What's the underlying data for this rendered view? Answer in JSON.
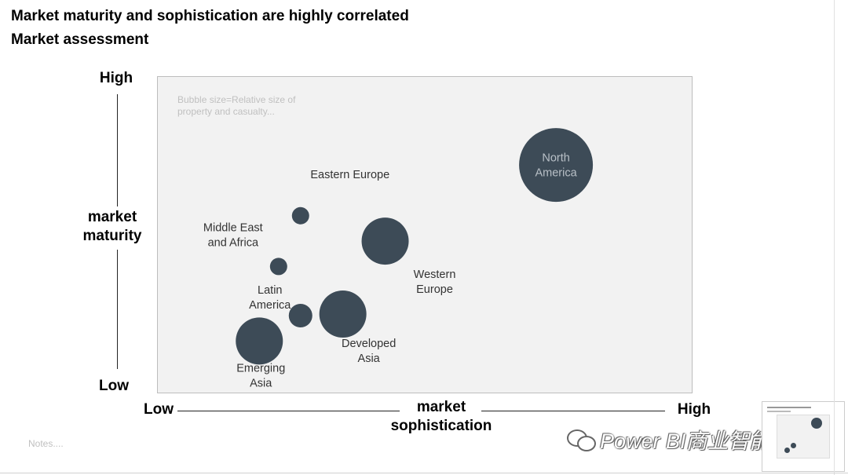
{
  "header": {
    "title": "Market maturity and sophistication are highly correlated",
    "subtitle": "Market assessment"
  },
  "chart_data": {
    "type": "scatter",
    "title": "Market maturity and sophistication are highly correlated",
    "subtitle": "Market assessment",
    "xlabel": "market sophistication",
    "ylabel": "market maturity",
    "x_axis": {
      "low_label": "Low",
      "high_label": "High",
      "label_line1": "market",
      "label_line2": "sophistication"
    },
    "y_axis": {
      "low_label": "Low",
      "high_label": "High",
      "label_line1": "market",
      "label_line2": "maturity"
    },
    "xlim": [
      0,
      100
    ],
    "ylim": [
      0,
      100
    ],
    "bubble_note": "Bubble size=Relative size of property and casualty...",
    "grid": false,
    "legend": "none",
    "bubble_color": "#3d4b57",
    "points": [
      {
        "name": "North America",
        "label_lines": [
          "North",
          "America"
        ],
        "x": 74.5,
        "y": 72,
        "size": 47,
        "label_pos": "inside"
      },
      {
        "name": "Eastern Europe",
        "label_lines": [
          "Eastern Europe"
        ],
        "x": 26.8,
        "y": 56,
        "size": 11,
        "label_pos": "above"
      },
      {
        "name": "Western Europe",
        "label_lines": [
          "Western",
          "Europe"
        ],
        "x": 42.6,
        "y": 48,
        "size": 30,
        "label_pos": "right"
      },
      {
        "name": "Middle East and Africa",
        "label_lines": [
          "Middle East",
          "and Africa"
        ],
        "x": 22.7,
        "y": 40,
        "size": 11,
        "label_pos": "left"
      },
      {
        "name": "Latin America",
        "label_lines": [
          "Latin",
          "America"
        ],
        "x": 26.8,
        "y": 24.5,
        "size": 15,
        "label_pos": "left"
      },
      {
        "name": "Developed Asia",
        "label_lines": [
          "Developed",
          "Asia"
        ],
        "x": 34.7,
        "y": 25,
        "size": 30,
        "label_pos": "below"
      },
      {
        "name": "Emerging Asia",
        "label_lines": [
          "Emerging",
          "Asia"
        ],
        "x": 19.1,
        "y": 16.5,
        "size": 30,
        "label_pos": "below"
      }
    ]
  },
  "footer": {
    "notes": "Notes....",
    "watermark": "Power BI商业智能分析"
  }
}
